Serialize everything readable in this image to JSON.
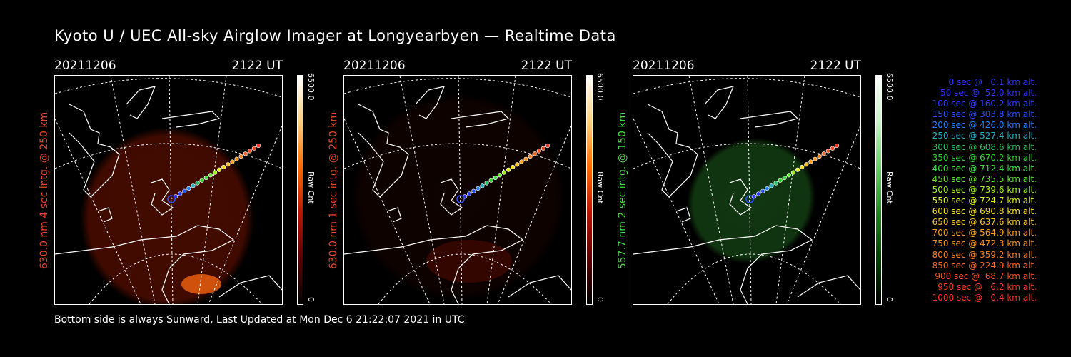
{
  "title": "Kyoto U / UEC All-sky Airglow Imager at Longyearbyen — Realtime Data",
  "footer": "Bottom side is always Sunward, Last Updated at Mon Dec  6 21:22:07 2021 in UTC",
  "panels": [
    {
      "date": "20211206",
      "time": "2122 UT",
      "side_label": "630.0 nm 4 sec intg. @ 250 km",
      "side_color": "#e8442a",
      "cbar_max": "6500.0",
      "cbar_min": "0",
      "cbar_label": "Raw Cnt",
      "cbar_gradient": [
        "#000000",
        "#5a0000",
        "#b81400",
        "#ff6a00",
        "#ffd080",
        "#ffffff"
      ],
      "image_color": "#7a1400",
      "image_level": 0.55
    },
    {
      "date": "20211206",
      "time": "2122 UT",
      "side_label": "630.0 nm 1 sec intg. @ 250 km",
      "side_color": "#e8442a",
      "cbar_max": "6500.0",
      "cbar_min": "0",
      "cbar_label": "Raw Cnt",
      "cbar_gradient": [
        "#000000",
        "#5a0000",
        "#b81400",
        "#ff6a00",
        "#ffd080",
        "#ffffff"
      ],
      "image_color": "#2a0500",
      "image_level": 0.35
    },
    {
      "date": "20211206",
      "time": "2122 UT",
      "side_label": "557.7 nm 2 sec intg. @ 150 km",
      "side_color": "#48d848",
      "cbar_max": "6500.0",
      "cbar_min": "0",
      "cbar_label": "Raw Cnt",
      "cbar_gradient": [
        "#000000",
        "#004400",
        "#1e8a1e",
        "#62d262",
        "#c8f5c8",
        "#ffffff"
      ],
      "image_color": "#1c5a1c",
      "image_level": 0.6
    }
  ],
  "legend": [
    {
      "text": "0 sec @   0.1 km alt.",
      "color": "#3030ff"
    },
    {
      "text": "50 sec @  52.0 km alt.",
      "color": "#3030ff"
    },
    {
      "text": "100 sec @ 160.2 km alt.",
      "color": "#2a3cff"
    },
    {
      "text": "150 sec @ 303.8 km alt.",
      "color": "#2050ff"
    },
    {
      "text": "200 sec @ 426.0 km alt.",
      "color": "#2080ff"
    },
    {
      "text": "250 sec @ 527.4 km alt.",
      "color": "#20b0c0"
    },
    {
      "text": "300 sec @ 608.6 km alt.",
      "color": "#20c060"
    },
    {
      "text": "350 sec @ 670.2 km alt.",
      "color": "#30d030"
    },
    {
      "text": "400 sec @ 712.4 km alt.",
      "color": "#40e040"
    },
    {
      "text": "450 sec @ 735.5 km alt.",
      "color": "#60e830"
    },
    {
      "text": "500 sec @ 739.6 km alt.",
      "color": "#a0f020"
    },
    {
      "text": "550 sec @ 724.7 km alt.",
      "color": "#e0f020"
    },
    {
      "text": "600 sec @ 690.8 km alt.",
      "color": "#f8e020"
    },
    {
      "text": "650 sec @ 637.6 km alt.",
      "color": "#f8c020"
    },
    {
      "text": "700 sec @ 564.9 km alt.",
      "color": "#f8a020"
    },
    {
      "text": "750 sec @ 472.3 km alt.",
      "color": "#f89020"
    },
    {
      "text": "800 sec @ 359.2 km alt.",
      "color": "#f88020"
    },
    {
      "text": "850 sec @ 224.9 km alt.",
      "color": "#f86820"
    },
    {
      "text": "900 sec @  68.7 km alt.",
      "color": "#f85020"
    },
    {
      "text": "950 sec @   6.2 km alt.",
      "color": "#f83c20"
    },
    {
      "text": "1000 sec @   0.4 km alt.",
      "color": "#f83020"
    }
  ]
}
